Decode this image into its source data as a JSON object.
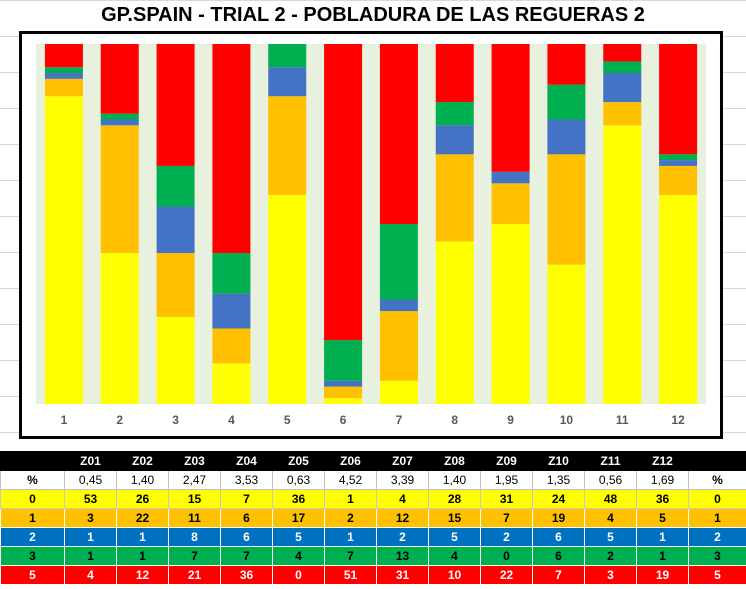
{
  "title": "GP.SPAIN - TRIAL 2 - POBLADURA DE LAS REGUERAS 2",
  "chart_data": {
    "type": "bar",
    "stacked": "100%",
    "categories": [
      "1",
      "2",
      "3",
      "4",
      "5",
      "6",
      "7",
      "8",
      "9",
      "10",
      "11",
      "12"
    ],
    "series": [
      {
        "name": "0",
        "color": "#ffff00",
        "values": [
          53,
          26,
          15,
          7,
          36,
          1,
          4,
          28,
          31,
          24,
          48,
          36
        ]
      },
      {
        "name": "1",
        "color": "#ffc000",
        "values": [
          3,
          22,
          11,
          6,
          17,
          2,
          12,
          15,
          7,
          19,
          4,
          5
        ]
      },
      {
        "name": "2",
        "color": "#4472c4",
        "values": [
          1,
          1,
          8,
          6,
          5,
          1,
          2,
          5,
          2,
          6,
          5,
          1
        ]
      },
      {
        "name": "3",
        "color": "#00b050",
        "values": [
          1,
          1,
          7,
          7,
          4,
          7,
          13,
          4,
          0,
          6,
          2,
          1
        ]
      },
      {
        "name": "5",
        "color": "#ff0000",
        "values": [
          4,
          12,
          21,
          36,
          0,
          51,
          31,
          10,
          22,
          7,
          3,
          19
        ]
      }
    ],
    "plot_background": "#e8f0de",
    "grid": false,
    "legend": "none"
  },
  "table": {
    "header": [
      "",
      "Z01",
      "Z02",
      "Z03",
      "Z04",
      "Z05",
      "Z06",
      "Z07",
      "Z08",
      "Z09",
      "Z10",
      "Z11",
      "Z12",
      ""
    ],
    "pct_row": [
      "%",
      "0,45",
      "1,40",
      "2,47",
      "3,53",
      "0,63",
      "4,52",
      "3,39",
      "1,40",
      "1,95",
      "1,35",
      "0,56",
      "1,69",
      "%"
    ],
    "rows": [
      {
        "label": "0",
        "values": [
          "53",
          "26",
          "15",
          "7",
          "36",
          "1",
          "4",
          "28",
          "31",
          "24",
          "48",
          "36"
        ],
        "end": "0"
      },
      {
        "label": "1",
        "values": [
          "3",
          "22",
          "11",
          "6",
          "17",
          "2",
          "12",
          "15",
          "7",
          "19",
          "4",
          "5"
        ],
        "end": "1"
      },
      {
        "label": "2",
        "values": [
          "1",
          "1",
          "8",
          "6",
          "5",
          "1",
          "2",
          "5",
          "2",
          "6",
          "5",
          "1"
        ],
        "end": "2"
      },
      {
        "label": "3",
        "values": [
          "1",
          "1",
          "7",
          "7",
          "4",
          "7",
          "13",
          "4",
          "0",
          "6",
          "2",
          "1"
        ],
        "end": "3"
      },
      {
        "label": "5",
        "values": [
          "4",
          "12",
          "21",
          "36",
          "0",
          "51",
          "31",
          "10",
          "22",
          "7",
          "3",
          "19"
        ],
        "end": "5"
      }
    ]
  }
}
